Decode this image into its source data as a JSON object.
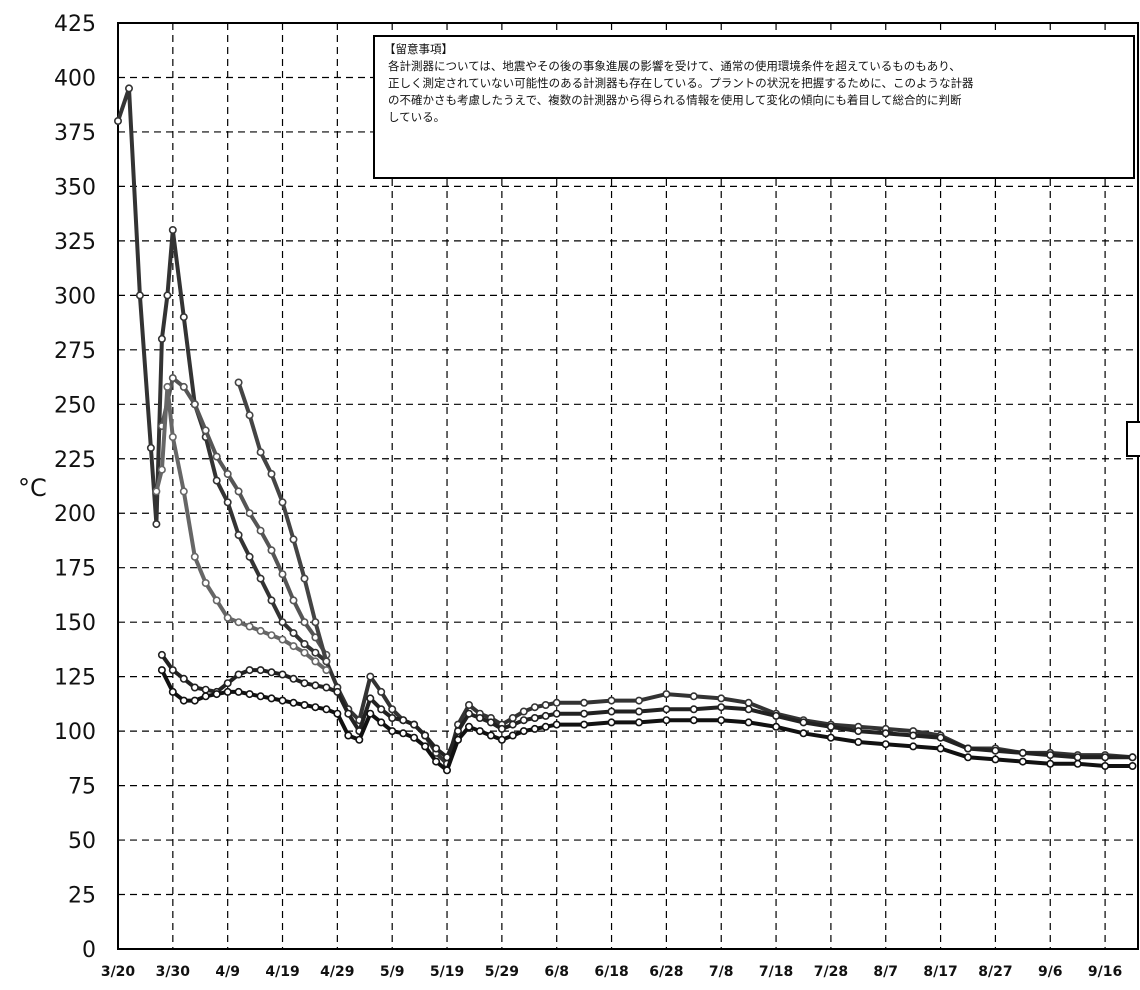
{
  "chart_data": {
    "type": "line",
    "title": "",
    "xlabel": "",
    "ylabel": "°C",
    "ylim": [
      0,
      425
    ],
    "xlim": [
      "3/20",
      "9/20"
    ],
    "grid": true,
    "grid_style": "dashed",
    "yticks": [
      0,
      25,
      50,
      75,
      100,
      125,
      150,
      175,
      200,
      225,
      250,
      275,
      300,
      325,
      350,
      375,
      400,
      425
    ],
    "x_tick_labels": [
      "3/20",
      "3/30",
      "4/9",
      "4/19",
      "4/29",
      "5/9",
      "5/19",
      "5/29",
      "6/8",
      "6/18",
      "6/28",
      "7/8",
      "7/18",
      "7/28",
      "8/7",
      "8/17",
      "8/27",
      "9/6",
      "9/16"
    ],
    "x_tick_days": [
      0,
      10,
      20,
      30,
      40,
      50,
      60,
      70,
      80,
      90,
      100,
      110,
      120,
      130,
      140,
      150,
      160,
      170,
      180
    ],
    "annotation": {
      "title": "【留意事項】",
      "lines": [
        "各計測器については、地震やその後の事象進展の影響を受けて、通常の使用環境条件を超えているものもあり、",
        "正しく測定されていない可能性のある計測器も存在している。プラントの状況を把握するために、このような計器",
        "の不確かさも考慮したうえで、複数の計測器から得られる情報を使用して変化の傾向にも着目して総合的に判断",
        "している。"
      ]
    },
    "series": [
      {
        "color": "#333333",
        "x": [
          0,
          2,
          4,
          6,
          7,
          8,
          9,
          10,
          12,
          14,
          16,
          18,
          20,
          22,
          24,
          26,
          28,
          30,
          32,
          34,
          36,
          38,
          40,
          42,
          44,
          46,
          48,
          50,
          52,
          54,
          56,
          58,
          60,
          62,
          64,
          66,
          68,
          70,
          72,
          74,
          76,
          78,
          80,
          85,
          90,
          95,
          100,
          105,
          110,
          115,
          120,
          125,
          130,
          135,
          140,
          145,
          150,
          155,
          160,
          165,
          170,
          175,
          180,
          185
        ],
        "y": [
          380,
          395,
          300,
          230,
          195,
          280,
          300,
          330,
          290,
          250,
          235,
          215,
          205,
          190,
          180,
          170,
          160,
          150,
          145,
          140,
          136,
          132,
          120,
          110,
          105,
          125,
          118,
          110,
          105,
          103,
          98,
          90,
          85,
          103,
          112,
          108,
          106,
          103,
          106,
          109,
          111,
          112,
          113,
          113,
          114,
          114,
          117,
          116,
          115,
          113,
          108,
          105,
          103,
          102,
          101,
          100,
          98,
          92,
          92,
          90,
          90,
          89,
          89,
          88
        ]
      },
      {
        "color": "#555555",
        "x": [
          8,
          10,
          12,
          14,
          16,
          18,
          20,
          22,
          24,
          26,
          28,
          30,
          32,
          34,
          36,
          38
        ],
        "y": [
          240,
          262,
          258,
          250,
          238,
          226,
          218,
          210,
          200,
          192,
          183,
          172,
          160,
          150,
          143,
          135
        ]
      },
      {
        "color": "#444444",
        "x": [
          22,
          24,
          26,
          28,
          30,
          32,
          34,
          36,
          38
        ],
        "y": [
          260,
          245,
          228,
          218,
          205,
          188,
          170,
          150,
          132
        ]
      },
      {
        "color": "#666666",
        "x": [
          7,
          8,
          9,
          10,
          12,
          14,
          16,
          18,
          20,
          22,
          24,
          26,
          28,
          30,
          32,
          34,
          36,
          38
        ],
        "y": [
          210,
          220,
          258,
          235,
          210,
          180,
          168,
          160,
          152,
          150,
          148,
          146,
          144,
          142,
          139,
          136,
          132,
          128
        ]
      },
      {
        "color": "#222222",
        "x": [
          8,
          10,
          12,
          14,
          16,
          18,
          20,
          22,
          24,
          26,
          28,
          30,
          32,
          34,
          36,
          38,
          40,
          42,
          44,
          46,
          48,
          50,
          52,
          54,
          56,
          58,
          60,
          62,
          64,
          66,
          68,
          70,
          72,
          74,
          76,
          78,
          80,
          85,
          90,
          95,
          100,
          105,
          110,
          115,
          120,
          125,
          130,
          135,
          140,
          145,
          150,
          155,
          160,
          165,
          170,
          175,
          180,
          185
        ],
        "y": [
          135,
          128,
          124,
          120,
          119,
          118,
          122,
          126,
          128,
          128,
          127,
          126,
          124,
          122,
          121,
          120,
          118,
          108,
          100,
          115,
          110,
          106,
          105,
          103,
          98,
          92,
          88,
          100,
          108,
          106,
          104,
          101,
          103,
          105,
          106,
          107,
          108,
          108,
          109,
          109,
          110,
          110,
          111,
          110,
          107,
          104,
          102,
          100,
          99,
          98,
          97,
          92,
          91,
          90,
          89,
          88,
          88,
          88
        ]
      },
      {
        "color": "#111111",
        "x": [
          8,
          10,
          12,
          14,
          16,
          18,
          20,
          22,
          24,
          26,
          28,
          30,
          32,
          34,
          36,
          38,
          40,
          42,
          44,
          46,
          48,
          50,
          52,
          54,
          56,
          58,
          60,
          62,
          64,
          66,
          68,
          70,
          72,
          74,
          76,
          78,
          80,
          85,
          90,
          95,
          100,
          105,
          110,
          115,
          120,
          125,
          130,
          135,
          140,
          145,
          150,
          155,
          160,
          165,
          170,
          175,
          180,
          185
        ],
        "y": [
          128,
          118,
          114,
          114,
          116,
          117,
          118,
          118,
          117,
          116,
          115,
          114,
          113,
          112,
          111,
          110,
          108,
          98,
          96,
          108,
          104,
          100,
          99,
          97,
          93,
          86,
          82,
          96,
          102,
          100,
          98,
          96,
          98,
          100,
          101,
          102,
          103,
          103,
          104,
          104,
          105,
          105,
          105,
          104,
          102,
          99,
          97,
          95,
          94,
          93,
          92,
          88,
          87,
          86,
          85,
          85,
          84,
          84
        ]
      }
    ]
  }
}
